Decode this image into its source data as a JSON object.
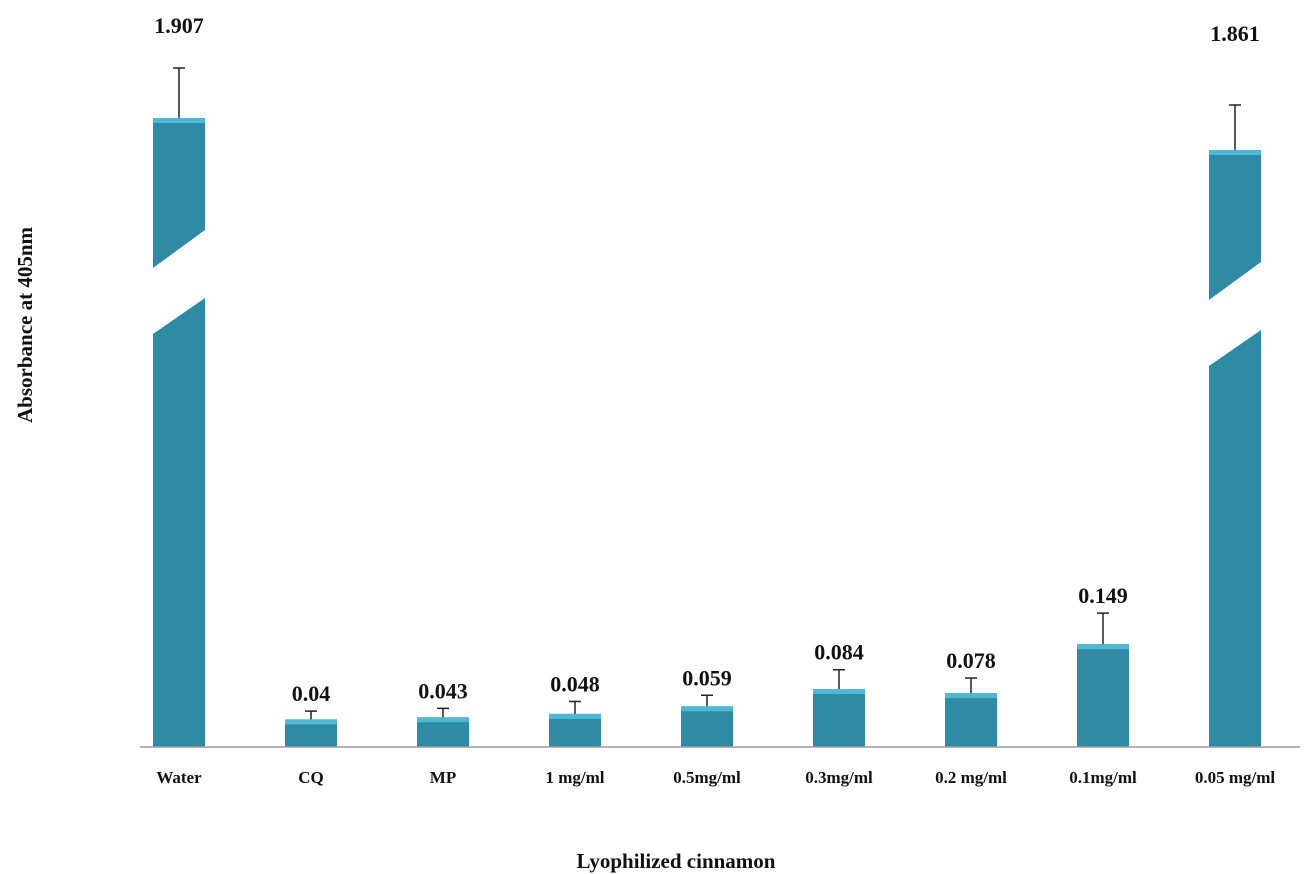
{
  "chart_data": {
    "type": "bar",
    "title": "",
    "xlabel": "Lyophilized cinnamon",
    "ylabel": "Absorbance at 405nm",
    "categories": [
      "Water",
      "CQ",
      "MP",
      "1 mg/ml",
      "0.5mg/ml",
      "0.3mg/ml",
      "0.2 mg/ml",
      "0.1mg/ml",
      "0.05 mg/ml"
    ],
    "values": [
      1.907,
      0.04,
      0.043,
      0.048,
      0.059,
      0.084,
      0.078,
      0.149,
      1.861
    ],
    "value_labels": [
      "1.907",
      "0.04",
      "0.043",
      "0.048",
      "0.059",
      "0.084",
      "0.078",
      "0.149",
      "1.861"
    ],
    "error_bars": [
      0.1,
      0.012,
      0.013,
      0.018,
      0.016,
      0.028,
      0.022,
      0.045,
      0.09
    ],
    "axis_break": true,
    "grid": false,
    "legend": "none",
    "bar_color": "#2f8aa3",
    "bar_top_color": "#4fb8d3"
  }
}
